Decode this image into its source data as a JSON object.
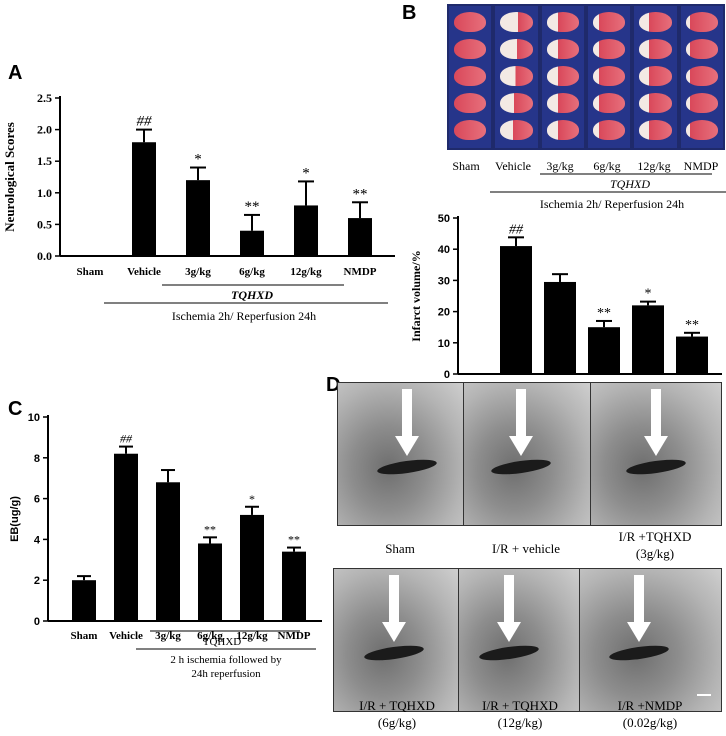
{
  "panels": {
    "a": {
      "letter": "A"
    },
    "b": {
      "letter": "B"
    },
    "c": {
      "letter": "C"
    },
    "d": {
      "letter": "D"
    }
  },
  "chart_data": [
    {
      "id": "A",
      "type": "bar",
      "ylabel": "Neurological Scores",
      "ylim": [
        0,
        2.5
      ],
      "yticks": [
        "0.0",
        "0.5",
        "1.0",
        "1.5",
        "2.0",
        "2.5"
      ],
      "categories": [
        "Sham",
        "Vehicle",
        "3g/kg",
        "6g/kg",
        "12g/kg",
        "NMDP"
      ],
      "values": [
        0,
        1.8,
        1.2,
        0.4,
        0.8,
        0.6
      ],
      "errors": [
        0,
        0.2,
        0.2,
        0.25,
        0.38,
        0.25
      ],
      "annotations": [
        "",
        "##",
        "*",
        "**",
        "*",
        "**"
      ],
      "group_label": "TQHXD",
      "condition_label": "Ischemia 2h/ Reperfusion 24h"
    },
    {
      "id": "B",
      "type": "bar",
      "ylabel": "Infarct volume/%",
      "ylim": [
        0,
        50
      ],
      "yticks": [
        "0",
        "10",
        "20",
        "30",
        "40",
        "50"
      ],
      "categories": [
        "Sham",
        "Vehicle",
        "3g/kg",
        "6g/kg",
        "12g/kg",
        "NMDP"
      ],
      "values": [
        0,
        41,
        29.5,
        15,
        22,
        12
      ],
      "errors": [
        0,
        2.8,
        2.5,
        2.0,
        1.2,
        1.2
      ],
      "annotations": [
        "",
        "##",
        "",
        "**",
        "*",
        "**"
      ],
      "group_label": "TQHXD",
      "condition_label": "Ischemia 2h/ Reperfusion 24h"
    },
    {
      "id": "C",
      "type": "bar",
      "ylabel": "EB(ug/g)",
      "ylim": [
        0,
        10
      ],
      "yticks": [
        "0",
        "2",
        "4",
        "6",
        "8",
        "10"
      ],
      "categories": [
        "Sham",
        "Vehicle",
        "3g/kg",
        "6g/kg",
        "12g/kg",
        "NMDP"
      ],
      "values": [
        2.0,
        8.2,
        6.8,
        3.8,
        5.2,
        3.4
      ],
      "errors": [
        0.2,
        0.35,
        0.6,
        0.3,
        0.4,
        0.2
      ],
      "annotations": [
        "",
        "##",
        "",
        "**",
        "*",
        "**"
      ],
      "group_label": "TQHXD",
      "condition_label_1": "2 h ischemia followed by",
      "condition_label_2": "24h reperfusion"
    }
  ],
  "brain_slices": {
    "columns": [
      "Sham",
      "Vehicle",
      "3g/kg",
      "6g/kg",
      "12g/kg",
      "NMDP"
    ],
    "group_label": "TQHXD",
    "condition_label": "Ischemia 2h/ Reperfusion 24h"
  },
  "micrographs": {
    "top_labels": [
      "Sham",
      "I/R + vehicle",
      "I/R +TQHXD",
      "(3g/kg)"
    ],
    "bottom_labels": [
      [
        "I/R + TQHXD",
        "(6g/kg)"
      ],
      [
        "I/R + TQHXD",
        "(12g/kg)"
      ],
      [
        "I/R +NMDP",
        "(0.02g/kg)"
      ]
    ]
  },
  "colors": {
    "bar": "#000000",
    "slice_red": "#d9485a",
    "slice_pale": "#f3e9e4",
    "em_gray": "#9a9a9a"
  }
}
